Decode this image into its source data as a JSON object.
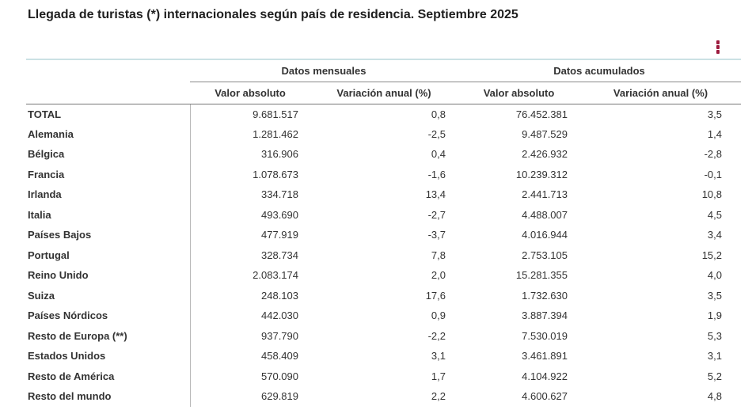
{
  "page": {
    "title": "Llegada de turistas (*) internacionales según país de residencia. Septiembre 2025"
  },
  "toolbar": {
    "menu_icon": "kebab-menu-icon"
  },
  "colors": {
    "accent": "#9D1B3E",
    "teal_rule": "#CBE1E4",
    "header_line": "#767676",
    "group_line": "#8a8a8a",
    "column_divider": "#b8b8b8",
    "text": "#333333"
  },
  "table": {
    "group_headers": [
      {
        "label": "Datos mensuales"
      },
      {
        "label": "Datos acumulados"
      }
    ],
    "sub_headers": [
      "Valor absoluto",
      "Variación anual (%)",
      "Valor absoluto",
      "Variación anual (%)"
    ],
    "rows": [
      {
        "label": "TOTAL",
        "monthly_abs": "9.681.517",
        "monthly_var": "0,8",
        "accum_abs": "76.452.381",
        "accum_var": "3,5"
      },
      {
        "label": "Alemania",
        "monthly_abs": "1.281.462",
        "monthly_var": "-2,5",
        "accum_abs": "9.487.529",
        "accum_var": "1,4"
      },
      {
        "label": "Bélgica",
        "monthly_abs": "316.906",
        "monthly_var": "0,4",
        "accum_abs": "2.426.932",
        "accum_var": "-2,8"
      },
      {
        "label": "Francia",
        "monthly_abs": "1.078.673",
        "monthly_var": "-1,6",
        "accum_abs": "10.239.312",
        "accum_var": "-0,1"
      },
      {
        "label": "Irlanda",
        "monthly_abs": "334.718",
        "monthly_var": "13,4",
        "accum_abs": "2.441.713",
        "accum_var": "10,8"
      },
      {
        "label": "Italia",
        "monthly_abs": "493.690",
        "monthly_var": "-2,7",
        "accum_abs": "4.488.007",
        "accum_var": "4,5"
      },
      {
        "label": "Países Bajos",
        "monthly_abs": "477.919",
        "monthly_var": "-3,7",
        "accum_abs": "4.016.944",
        "accum_var": "3,4"
      },
      {
        "label": "Portugal",
        "monthly_abs": "328.734",
        "monthly_var": "7,8",
        "accum_abs": "2.753.105",
        "accum_var": "15,2"
      },
      {
        "label": "Reino Unido",
        "monthly_abs": "2.083.174",
        "monthly_var": "2,0",
        "accum_abs": "15.281.355",
        "accum_var": "4,0"
      },
      {
        "label": "Suiza",
        "monthly_abs": "248.103",
        "monthly_var": "17,6",
        "accum_abs": "1.732.630",
        "accum_var": "3,5"
      },
      {
        "label": "Países Nórdicos",
        "monthly_abs": "442.030",
        "monthly_var": "0,9",
        "accum_abs": "3.887.394",
        "accum_var": "1,9"
      },
      {
        "label": "Resto de Europa (**)",
        "monthly_abs": "937.790",
        "monthly_var": "-2,2",
        "accum_abs": "7.530.019",
        "accum_var": "5,3"
      },
      {
        "label": "Estados Unidos",
        "monthly_abs": "458.409",
        "monthly_var": "3,1",
        "accum_abs": "3.461.891",
        "accum_var": "3,1"
      },
      {
        "label": "Resto de América",
        "monthly_abs": "570.090",
        "monthly_var": "1,7",
        "accum_abs": "4.104.922",
        "accum_var": "5,2"
      },
      {
        "label": "Resto del mundo",
        "monthly_abs": "629.819",
        "monthly_var": "2,2",
        "accum_abs": "4.600.627",
        "accum_var": "4,8"
      }
    ]
  }
}
